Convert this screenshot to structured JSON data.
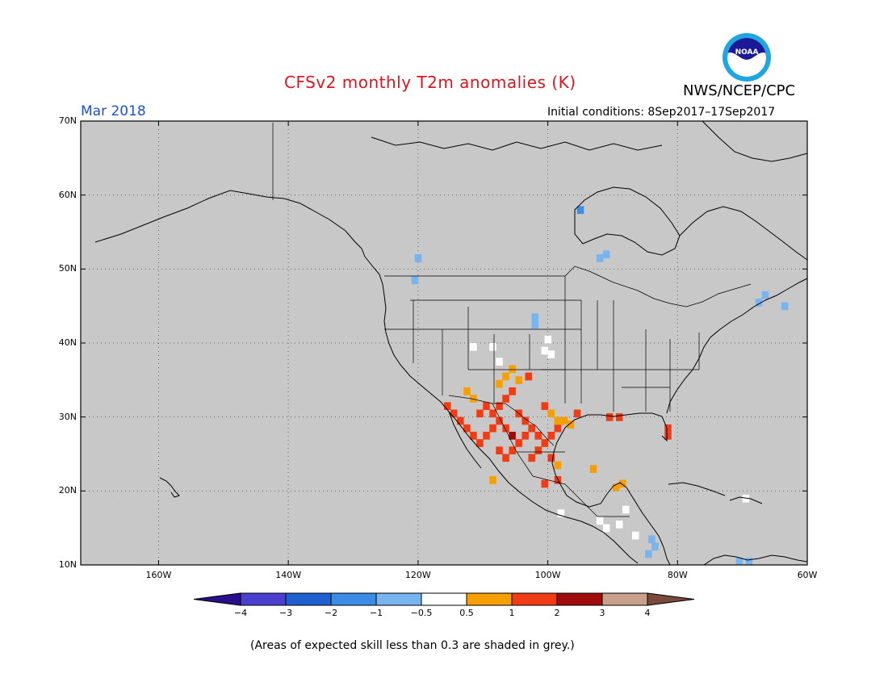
{
  "header": {
    "title": "CFSv2 monthly T2m anomalies (K)",
    "agency": "NWS/NCEP/CPC",
    "month": "Mar 2018",
    "initial_conditions": "Initial conditions: 8Sep2017–17Sep2017"
  },
  "logo": {
    "name": "noaa-logo",
    "text": "NOAA"
  },
  "map": {
    "lat_labels": [
      "70N",
      "60N",
      "50N",
      "40N",
      "30N",
      "20N",
      "10N"
    ],
    "lon_labels": [
      "160W",
      "140W",
      "120W",
      "100W",
      "80W",
      "60W"
    ],
    "lat_values": [
      70,
      60,
      50,
      40,
      30,
      20,
      10
    ],
    "lon_values": [
      -160,
      -140,
      -120,
      -100,
      -80,
      -60
    ],
    "extent": {
      "lon_min": -172,
      "lon_max": -60,
      "lat_min": 10,
      "lat_max": 70
    },
    "background_color": "#c8c8c8",
    "anomaly_cells": [
      {
        "lon": -115.5,
        "lat": 31.5,
        "cls": "1-2"
      },
      {
        "lon": -114.5,
        "lat": 30.5,
        "cls": "1-2"
      },
      {
        "lon": -113.5,
        "lat": 29.5,
        "cls": "1-2"
      },
      {
        "lon": -112.5,
        "lat": 28.5,
        "cls": "1-2"
      },
      {
        "lon": -111.5,
        "lat": 27.5,
        "cls": "1-2"
      },
      {
        "lon": -110.5,
        "lat": 26.5,
        "cls": "1-2"
      },
      {
        "lon": -109.5,
        "lat": 27.5,
        "cls": "1-2"
      },
      {
        "lon": -108.5,
        "lat": 28.5,
        "cls": "1-2"
      },
      {
        "lon": -107.5,
        "lat": 29.5,
        "cls": "1-2"
      },
      {
        "lon": -106.5,
        "lat": 28.5,
        "cls": "1-2"
      },
      {
        "lon": -105.5,
        "lat": 27.5,
        "cls": "2-3"
      },
      {
        "lon": -104.5,
        "lat": 26.5,
        "cls": "1-2"
      },
      {
        "lon": -103.5,
        "lat": 27.5,
        "cls": "1-2"
      },
      {
        "lon": -102.5,
        "lat": 28.5,
        "cls": "1-2"
      },
      {
        "lon": -101.5,
        "lat": 27.5,
        "cls": "1-2"
      },
      {
        "lon": -100.5,
        "lat": 26.5,
        "cls": "1-2"
      },
      {
        "lon": -99.5,
        "lat": 27.5,
        "cls": "1-2"
      },
      {
        "lon": -98.5,
        "lat": 28.5,
        "cls": "1-2"
      },
      {
        "lon": -110.5,
        "lat": 30.5,
        "cls": "1-2"
      },
      {
        "lon": -109.5,
        "lat": 31.5,
        "cls": "1-2"
      },
      {
        "lon": -108.5,
        "lat": 30.5,
        "cls": "1-2"
      },
      {
        "lon": -107.5,
        "lat": 31.5,
        "cls": "1-2"
      },
      {
        "lon": -106.5,
        "lat": 32.5,
        "cls": "1-2"
      },
      {
        "lon": -105.5,
        "lat": 33.5,
        "cls": "1-2"
      },
      {
        "lon": -104.5,
        "lat": 30.5,
        "cls": "1-2"
      },
      {
        "lon": -103.5,
        "lat": 29.5,
        "cls": "1-2"
      },
      {
        "lon": -107.5,
        "lat": 25.5,
        "cls": "1-2"
      },
      {
        "lon": -106.5,
        "lat": 24.5,
        "cls": "1-2"
      },
      {
        "lon": -105.5,
        "lat": 25.5,
        "cls": "1-2"
      },
      {
        "lon": -102.5,
        "lat": 24.5,
        "cls": "1-2"
      },
      {
        "lon": -101.5,
        "lat": 25.5,
        "cls": "1-2"
      },
      {
        "lon": -99.5,
        "lat": 24.5,
        "cls": "1-2"
      },
      {
        "lon": -100.5,
        "lat": 31.5,
        "cls": "1-2"
      },
      {
        "lon": -95.5,
        "lat": 30.5,
        "cls": "1-2"
      },
      {
        "lon": -90.5,
        "lat": 30.0,
        "cls": "1-2"
      },
      {
        "lon": -89.0,
        "lat": 30.0,
        "cls": "1-2"
      },
      {
        "lon": -81.5,
        "lat": 28.5,
        "cls": "1-2"
      },
      {
        "lon": -81.5,
        "lat": 27.5,
        "cls": "1-2"
      },
      {
        "lon": -103.0,
        "lat": 35.5,
        "cls": "1-2"
      },
      {
        "lon": -98.5,
        "lat": 21.5,
        "cls": "1-2"
      },
      {
        "lon": -100.5,
        "lat": 21.0,
        "cls": "1-2"
      },
      {
        "lon": -112.5,
        "lat": 33.5,
        "cls": "0.5-1"
      },
      {
        "lon": -111.5,
        "lat": 32.5,
        "cls": "0.5-1"
      },
      {
        "lon": -107.5,
        "lat": 34.5,
        "cls": "0.5-1"
      },
      {
        "lon": -106.5,
        "lat": 35.5,
        "cls": "0.5-1"
      },
      {
        "lon": -105.5,
        "lat": 36.5,
        "cls": "0.5-1"
      },
      {
        "lon": -104.5,
        "lat": 35.0,
        "cls": "0.5-1"
      },
      {
        "lon": -99.5,
        "lat": 30.5,
        "cls": "0.5-1"
      },
      {
        "lon": -98.5,
        "lat": 29.5,
        "cls": "0.5-1"
      },
      {
        "lon": -97.5,
        "lat": 29.5,
        "cls": "0.5-1"
      },
      {
        "lon": -96.5,
        "lat": 29.0,
        "cls": "0.5-1"
      },
      {
        "lon": -98.5,
        "lat": 23.5,
        "cls": "0.5-1"
      },
      {
        "lon": -108.5,
        "lat": 21.5,
        "cls": "0.5-1"
      },
      {
        "lon": -89.5,
        "lat": 20.5,
        "cls": "0.5-1"
      },
      {
        "lon": -88.5,
        "lat": 21.0,
        "cls": "0.5-1"
      },
      {
        "lon": -93.0,
        "lat": 23.0,
        "cls": "0.5-1"
      },
      {
        "lon": -111.5,
        "lat": 39.5,
        "cls": "-0.5-0.5"
      },
      {
        "lon": -108.5,
        "lat": 39.5,
        "cls": "-0.5-0.5"
      },
      {
        "lon": -107.5,
        "lat": 37.5,
        "cls": "-0.5-0.5"
      },
      {
        "lon": -100.5,
        "lat": 39.0,
        "cls": "-0.5-0.5"
      },
      {
        "lon": -100.0,
        "lat": 40.5,
        "cls": "-0.5-0.5"
      },
      {
        "lon": -99.5,
        "lat": 38.5,
        "cls": "-0.5-0.5"
      },
      {
        "lon": -98.0,
        "lat": 17.0,
        "cls": "-0.5-0.5"
      },
      {
        "lon": -92.0,
        "lat": 16.0,
        "cls": "-0.5-0.5"
      },
      {
        "lon": -91.0,
        "lat": 15.0,
        "cls": "-0.5-0.5"
      },
      {
        "lon": -89.0,
        "lat": 15.5,
        "cls": "-0.5-0.5"
      },
      {
        "lon": -88.0,
        "lat": 17.5,
        "cls": "-0.5-0.5"
      },
      {
        "lon": -86.5,
        "lat": 14.0,
        "cls": "-0.5-0.5"
      },
      {
        "lon": -69.5,
        "lat": 19.0,
        "cls": "-0.5-0.5"
      },
      {
        "lon": -102.0,
        "lat": 42.5,
        "cls": "-1--0.5"
      },
      {
        "lon": -102.0,
        "lat": 43.5,
        "cls": "-1--0.5"
      },
      {
        "lon": -120.0,
        "lat": 51.5,
        "cls": "-1--0.5"
      },
      {
        "lon": -120.5,
        "lat": 48.5,
        "cls": "-1--0.5"
      },
      {
        "lon": -91.0,
        "lat": 52.0,
        "cls": "-1--0.5"
      },
      {
        "lon": -92.0,
        "lat": 51.5,
        "cls": "-1--0.5"
      },
      {
        "lon": -84.0,
        "lat": 13.5,
        "cls": "-1--0.5"
      },
      {
        "lon": -83.5,
        "lat": 12.5,
        "cls": "-1--0.5"
      },
      {
        "lon": -84.5,
        "lat": 11.5,
        "cls": "-1--0.5"
      },
      {
        "lon": -66.5,
        "lat": 46.5,
        "cls": "-1--0.5"
      },
      {
        "lon": -67.5,
        "lat": 45.5,
        "cls": "-1--0.5"
      },
      {
        "lon": -63.5,
        "lat": 45.0,
        "cls": "-1--0.5"
      },
      {
        "lon": -70.5,
        "lat": 10.5,
        "cls": "-1--0.5"
      },
      {
        "lon": -69.0,
        "lat": 10.5,
        "cls": "-1--0.5"
      },
      {
        "lon": -95.0,
        "lat": 58.0,
        "cls": "-2--1"
      }
    ]
  },
  "colorbar": {
    "labels": [
      "−4",
      "−3",
      "−2",
      "−1",
      "−0.5",
      "0.5",
      "1",
      "2",
      "3",
      "4"
    ],
    "classes": [
      {
        "cls": "<-4",
        "color": "#2a0f8c"
      },
      {
        "cls": "-4--3",
        "color": "#4b3fd0"
      },
      {
        "cls": "-3--2",
        "color": "#1e60d0"
      },
      {
        "cls": "-2--1",
        "color": "#3c8ce6"
      },
      {
        "cls": "-1--0.5",
        "color": "#78b4f0"
      },
      {
        "cls": "-0.5-0.5",
        "color": "#ffffff"
      },
      {
        "cls": "0.5-1",
        "color": "#f5a000"
      },
      {
        "cls": "1-2",
        "color": "#f03c14"
      },
      {
        "cls": "2-3",
        "color": "#a00c0c"
      },
      {
        "cls": "3-4",
        "color": "#c8a08c"
      },
      {
        "cls": ">4",
        "color": "#7a4a3a"
      }
    ]
  },
  "footnote": "(Areas of expected skill less than 0.3 are shaded in grey.)"
}
